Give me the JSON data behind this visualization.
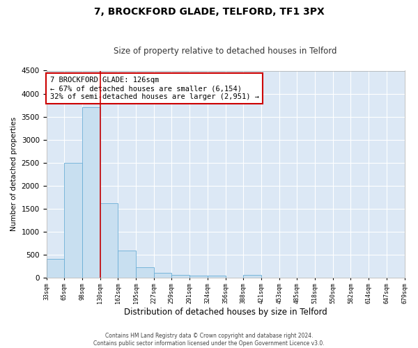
{
  "title": "7, BROCKFORD GLADE, TELFORD, TF1 3PX",
  "subtitle": "Size of property relative to detached houses in Telford",
  "xlabel": "Distribution of detached houses by size in Telford",
  "ylabel": "Number of detached properties",
  "bar_color": "#c8dff0",
  "bar_edge_color": "#6aaed6",
  "background_color": "#dce8f5",
  "grid_color": "#ffffff",
  "bin_labels": [
    "33sqm",
    "65sqm",
    "98sqm",
    "130sqm",
    "162sqm",
    "195sqm",
    "227sqm",
    "259sqm",
    "291sqm",
    "324sqm",
    "356sqm",
    "388sqm",
    "421sqm",
    "453sqm",
    "485sqm",
    "518sqm",
    "550sqm",
    "582sqm",
    "614sqm",
    "647sqm",
    "679sqm"
  ],
  "bar_values": [
    400,
    2500,
    3700,
    1620,
    590,
    225,
    105,
    55,
    45,
    45,
    0,
    60,
    0,
    0,
    0,
    0,
    0,
    0,
    0,
    0
  ],
  "property_line_x": 3,
  "property_line_color": "#cc0000",
  "ylim": [
    0,
    4500
  ],
  "yticks": [
    0,
    500,
    1000,
    1500,
    2000,
    2500,
    3000,
    3500,
    4000,
    4500
  ],
  "annotation_lines": [
    "7 BROCKFORD GLADE: 126sqm",
    "← 67% of detached houses are smaller (6,154)",
    "32% of semi-detached houses are larger (2,951) →"
  ],
  "annot_box_color": "#cc0000",
  "footer_line1": "Contains HM Land Registry data © Crown copyright and database right 2024.",
  "footer_line2": "Contains public sector information licensed under the Open Government Licence v3.0."
}
